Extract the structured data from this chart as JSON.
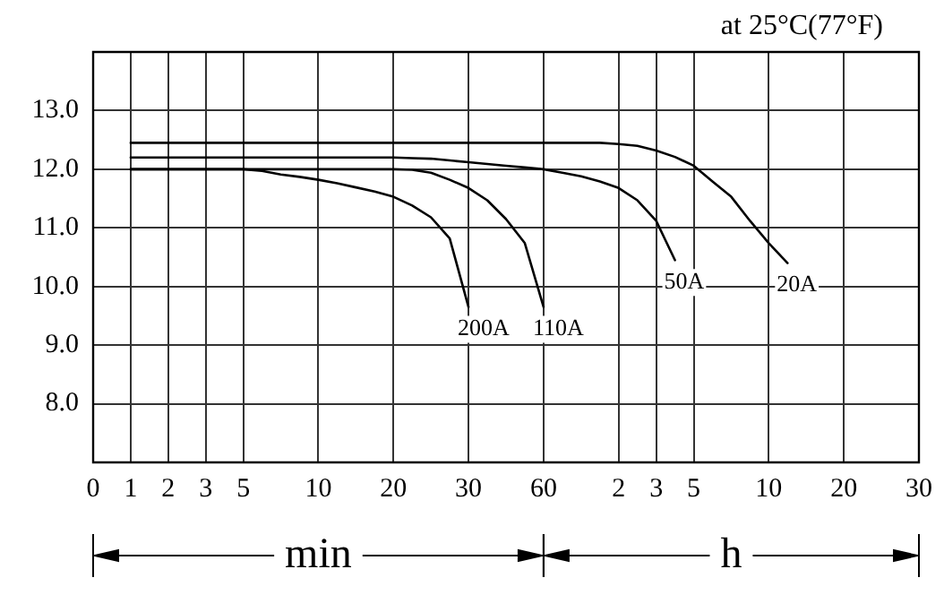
{
  "chart_data": {
    "type": "line",
    "annotations": [
      "at 25°C(77°F)",
      "min",
      "h"
    ],
    "categories": [
      "0",
      null,
      "1",
      null,
      "2",
      null,
      "3",
      null,
      "5",
      null,
      null,
      null,
      "10",
      null,
      null,
      null,
      "20",
      null,
      null,
      null,
      "30",
      null,
      null,
      null,
      "60",
      null,
      null,
      null,
      "2",
      null,
      "3",
      null,
      "5",
      null,
      null,
      null,
      "10",
      null,
      null,
      null,
      "20",
      null,
      null,
      null,
      "30"
    ],
    "ylim": [
      7.0,
      14.0
    ],
    "yticks": [
      {
        "value": 8,
        "label": "8.0"
      },
      {
        "value": 9,
        "label": "9.0"
      },
      {
        "value": 10,
        "label": "10.0"
      },
      {
        "value": 11,
        "label": "11.0"
      },
      {
        "value": 12,
        "label": "12.0"
      },
      {
        "value": 13,
        "label": "13.0"
      }
    ],
    "grid": true,
    "legend": false,
    "marker": "none",
    "line_style": "solid",
    "series": [
      {
        "name": "200A",
        "color": "#000000",
        "values": [
          null,
          null,
          12.0,
          12.0,
          12.0,
          12.0,
          12.0,
          12.0,
          12.0,
          11.97,
          11.91,
          11.87,
          11.82,
          11.76,
          11.69,
          11.62,
          11.53,
          11.38,
          11.18,
          10.82,
          9.65,
          null,
          null,
          null,
          null,
          null,
          null,
          null,
          null,
          null,
          null,
          null,
          null,
          null,
          null,
          null,
          null,
          null,
          null,
          null,
          null,
          null,
          null,
          null,
          null
        ]
      },
      {
        "name": "110A",
        "color": "#000000",
        "values": [
          null,
          null,
          12.0,
          12.0,
          12.0,
          12.0,
          12.0,
          12.0,
          12.0,
          12.0,
          12.0,
          12.0,
          12.0,
          12.0,
          12.0,
          12.0,
          12.0,
          11.99,
          11.94,
          11.82,
          11.68,
          11.47,
          11.15,
          10.74,
          9.65,
          null,
          null,
          null,
          null,
          null,
          null,
          null,
          null,
          null,
          null,
          null,
          null,
          null,
          null,
          null,
          null,
          null,
          null,
          null,
          null
        ]
      },
      {
        "name": "50A",
        "color": "#000000",
        "values": [
          null,
          null,
          12.2,
          12.2,
          12.2,
          12.2,
          12.2,
          12.2,
          12.2,
          12.2,
          12.2,
          12.2,
          12.2,
          12.2,
          12.2,
          12.2,
          12.2,
          12.19,
          12.18,
          12.15,
          12.12,
          12.09,
          12.06,
          12.03,
          12.0,
          11.94,
          11.88,
          11.79,
          11.68,
          11.47,
          11.12,
          10.45,
          null,
          null,
          null,
          null,
          null,
          null,
          null,
          null,
          null,
          null,
          null,
          null,
          null
        ]
      },
      {
        "name": "20A",
        "color": "#000000",
        "values": [
          null,
          null,
          12.45,
          12.45,
          12.45,
          12.45,
          12.45,
          12.45,
          12.45,
          12.45,
          12.45,
          12.45,
          12.45,
          12.45,
          12.45,
          12.45,
          12.45,
          12.45,
          12.45,
          12.45,
          12.45,
          12.45,
          12.45,
          12.45,
          12.45,
          12.45,
          12.45,
          12.45,
          12.43,
          12.4,
          12.32,
          12.21,
          12.06,
          11.79,
          11.53,
          11.12,
          10.74,
          10.4,
          null,
          null,
          null,
          null,
          null,
          null,
          null
        ]
      }
    ]
  }
}
